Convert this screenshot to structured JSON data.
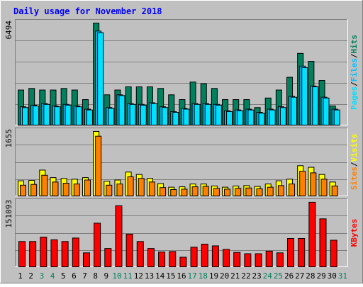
{
  "chart_data": [
    {
      "type": "bar",
      "title": "Daily usage for November 2018",
      "panel": "hits_files_pages",
      "y_max_label": "6494",
      "ylim": [
        0,
        6494
      ],
      "right_labels": [
        "Pages",
        "Files",
        "Hits"
      ],
      "right_label_separator": "/",
      "categories": [
        "1",
        "2",
        "3",
        "4",
        "5",
        "6",
        "7",
        "8",
        "9",
        "10",
        "11",
        "12",
        "13",
        "14",
        "15",
        "16",
        "17",
        "18",
        "19",
        "20",
        "21",
        "22",
        "23",
        "24",
        "25",
        "26",
        "27",
        "28",
        "29",
        "30",
        "31"
      ],
      "series": [
        {
          "name": "Hits",
          "color": "#00805c",
          "values": [
            2200,
            2300,
            2200,
            2200,
            2300,
            2200,
            1600,
            6400,
            1900,
            2200,
            2400,
            2400,
            2400,
            2300,
            1900,
            1600,
            2700,
            2600,
            2300,
            1600,
            1600,
            1600,
            1100,
            1700,
            2200,
            3000,
            4500,
            4000,
            2800,
            1200,
            0
          ]
        },
        {
          "name": "Files",
          "color": "#00bfff",
          "values": [
            1150,
            1250,
            1350,
            1200,
            1300,
            1200,
            1000,
            5900,
            1100,
            1900,
            1350,
            1300,
            1400,
            1150,
            850,
            1050,
            1350,
            1350,
            1300,
            900,
            950,
            1000,
            800,
            1000,
            1150,
            1800,
            3700,
            2450,
            1750,
            1000,
            0
          ]
        },
        {
          "name": "Pages",
          "color": "#00e0ff",
          "values": [
            1100,
            1200,
            1300,
            1150,
            1250,
            1150,
            950,
            5800,
            1050,
            1850,
            1300,
            1250,
            1350,
            1100,
            800,
            1000,
            1300,
            1300,
            1250,
            850,
            900,
            950,
            750,
            950,
            1100,
            1750,
            3600,
            2400,
            1700,
            950,
            0
          ]
        }
      ]
    },
    {
      "type": "bar",
      "panel": "visits_sites",
      "y_max_label": "1655",
      "ylim": [
        0,
        1655
      ],
      "right_labels": [
        "Sites",
        "Visits"
      ],
      "right_label_separator": "/",
      "categories": [
        "1",
        "2",
        "3",
        "4",
        "5",
        "6",
        "7",
        "8",
        "9",
        "10",
        "11",
        "12",
        "13",
        "14",
        "15",
        "16",
        "17",
        "18",
        "19",
        "20",
        "21",
        "22",
        "23",
        "24",
        "25",
        "26",
        "27",
        "28",
        "29",
        "30",
        "31"
      ],
      "series": [
        {
          "name": "Visits",
          "color": "#ffff00",
          "values": [
            380,
            390,
            650,
            460,
            440,
            420,
            460,
            1620,
            370,
            400,
            600,
            540,
            440,
            310,
            220,
            230,
            300,
            300,
            250,
            220,
            250,
            260,
            240,
            300,
            380,
            420,
            760,
            720,
            540,
            350,
            0
          ]
        },
        {
          "name": "Sites",
          "color": "#ff8000",
          "values": [
            270,
            290,
            520,
            350,
            320,
            300,
            400,
            1500,
            270,
            300,
            480,
            440,
            350,
            210,
            160,
            170,
            230,
            240,
            190,
            170,
            190,
            200,
            180,
            220,
            260,
            300,
            620,
            580,
            420,
            250,
            0
          ]
        }
      ]
    },
    {
      "type": "bar",
      "panel": "kbytes",
      "y_max_label": "151093",
      "ylim": [
        0,
        151093
      ],
      "right_labels": [
        "KBytes"
      ],
      "categories": [
        "1",
        "2",
        "3",
        "4",
        "5",
        "6",
        "7",
        "8",
        "9",
        "10",
        "11",
        "12",
        "13",
        "14",
        "15",
        "16",
        "17",
        "18",
        "19",
        "20",
        "21",
        "22",
        "23",
        "24",
        "25",
        "26",
        "27",
        "28",
        "29",
        "30",
        "31"
      ],
      "series": [
        {
          "name": "KBytes",
          "color": "#ff0000",
          "values": [
            58000,
            58000,
            68000,
            62000,
            58000,
            66000,
            32000,
            100000,
            42000,
            140000,
            75000,
            58000,
            42000,
            34000,
            35000,
            22000,
            45000,
            52000,
            48000,
            40000,
            33000,
            30000,
            30000,
            36000,
            32000,
            65000,
            65000,
            148000,
            110000,
            61000,
            0
          ]
        }
      ]
    }
  ],
  "x_axis": {
    "days": [
      "1",
      "2",
      "3",
      "4",
      "5",
      "6",
      "7",
      "8",
      "9",
      "10",
      "11",
      "12",
      "13",
      "14",
      "15",
      "16",
      "17",
      "18",
      "19",
      "20",
      "21",
      "22",
      "23",
      "24",
      "25",
      "26",
      "27",
      "28",
      "29",
      "30",
      "31"
    ],
    "weekend_days": [
      "3",
      "4",
      "10",
      "11",
      "17",
      "18",
      "24",
      "25",
      "31"
    ],
    "weekday_color": "#000000",
    "weekend_color": "#00805c"
  },
  "colors": {
    "background": "#c0c0c0",
    "title": "#0000ff",
    "gridline": "#808080",
    "frame_dark": "#808080",
    "frame_light": "#ffffff"
  }
}
